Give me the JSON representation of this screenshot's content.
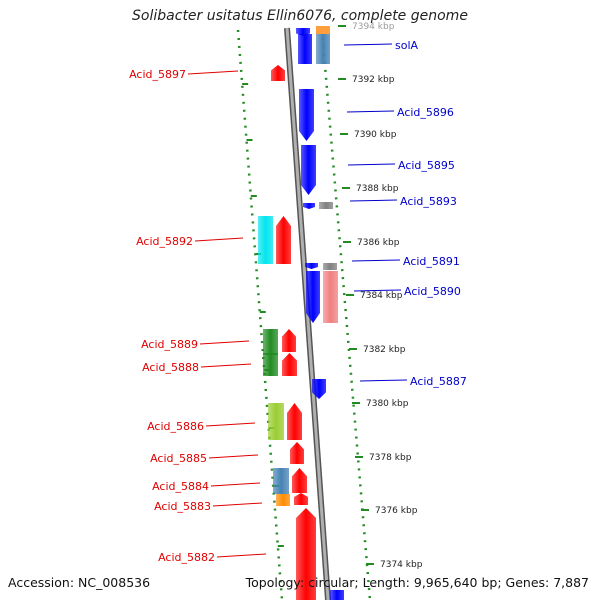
{
  "title": "Solibacter usitatus Ellin6076, complete genome",
  "accession": "Accession: NC_008536",
  "summary": "Topology: circular; Length: 9,965,640 bp; Genes: 7,887",
  "colors": {
    "left_labels": "#e00000",
    "right_labels": "#0000cc",
    "kbp_labels": "#222222",
    "backbone": "#888888",
    "dots": "#228b22"
  },
  "scale_marks": [
    "7394 kbp",
    "7392 kbp",
    "7390 kbp",
    "7388 kbp",
    "7386 kbp",
    "7384 kbp",
    "7382 kbp",
    "7380 kbp",
    "7378 kbp",
    "7376 kbp",
    "7374 kbp"
  ],
  "left_genes": [
    "Acid_5897",
    "Acid_5892",
    "Acid_5889",
    "Acid_5888",
    "Acid_5886",
    "Acid_5885",
    "Acid_5884",
    "Acid_5883",
    "Acid_5882"
  ],
  "right_genes": [
    "solA",
    "Acid_5896",
    "Acid_5895",
    "Acid_5893",
    "Acid_5891",
    "Acid_5890",
    "Acid_5887"
  ],
  "feature_colors": [
    "red",
    "blue",
    "steel-blue",
    "cyan",
    "green",
    "light-green",
    "pink",
    "orange",
    "gray"
  ]
}
